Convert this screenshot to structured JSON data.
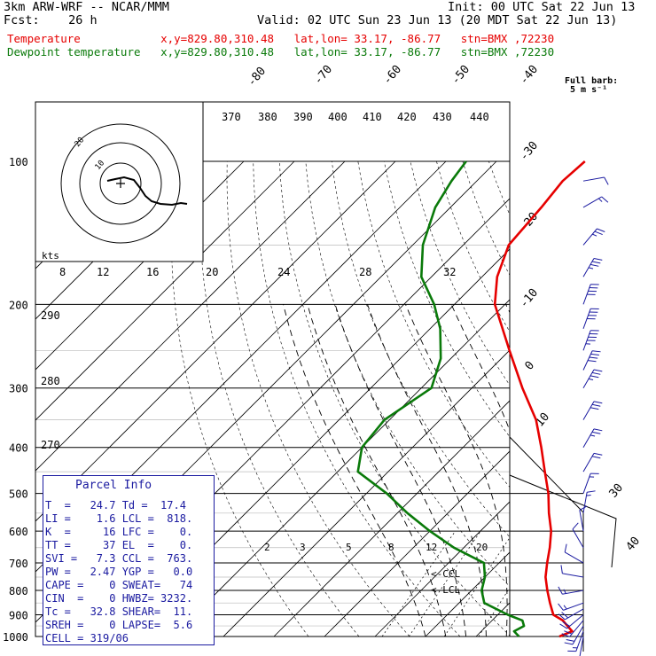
{
  "header": {
    "line1_left": "3km ARW-WRF -- NCAR/MMM",
    "line1_right": "Init: 00 UTC Sat 22 Jun 13",
    "line2_left": "Fcst:    26 h",
    "line2_right": "Valid: 02 UTC Sun 23 Jun 13 (20 MDT Sat 22 Jun 13)",
    "temp_line": "Temperature            x,y=829.80,310.48   lat,lon= 33.17, -86.77   stn=BMX ,72230",
    "dew_line": "Dewpoint temperature   x,y=829.80,310.48   lat,lon= 33.17, -86.77   stn=BMX ,72230"
  },
  "colors": {
    "temperature": "#e60000",
    "dewpoint": "#0a7a0a",
    "info_panel": "#1a1aa0",
    "winds": "#1a1aa0"
  },
  "wind_legend": {
    "line1": "Full barb:",
    "line2": "5 m s⁻¹"
  },
  "hodograph": {
    "units": "kts",
    "ring_labels": [
      "10",
      "20"
    ]
  },
  "parcel_info": {
    "title": "Parcel Info",
    "rows": [
      "T  =   24.7 Td =  17.4",
      "LI =    1.6 LCL =  818.",
      "K  =     16 LFC =    0.",
      "TT =     37 EL  =    0.",
      "SVI =   7.3 CCL =  763.",
      "PW =   2.47 YGP =   0.0",
      "CAPE =    0 SWEAT=   74",
      "CIN  =    0 HWBZ= 3232.",
      "Tc =   32.8 SHEAR=  11.",
      "SREH =    0 LAPSE=  5.6",
      "CELL = 319/06"
    ]
  },
  "chart_data": {
    "type": "line",
    "title": "",
    "xlabel": "",
    "ylabel": "",
    "pressure_axis_labels": [
      "100",
      "200",
      "300",
      "400",
      "500",
      "600",
      "700",
      "800",
      "900",
      "1000"
    ],
    "isotherm_labels_top": [
      "-80",
      "-70",
      "-60",
      "-50",
      "-40"
    ],
    "isotherm_labels_right": [
      "-30",
      "-20",
      "-10",
      "0",
      "10",
      "30",
      "40"
    ],
    "theta_labels": [
      "370",
      "380",
      "390",
      "400",
      "410",
      "420",
      "430",
      "440"
    ],
    "dry_adiabat_labels": [
      "290",
      "280",
      "270"
    ],
    "mixing_ratio_labels_top": [
      "8",
      "12",
      "16",
      "20",
      "24",
      "28",
      "32"
    ],
    "mixing_ratio_labels_low": [
      "2",
      "3",
      "5",
      "8",
      "12",
      "20"
    ],
    "annotations": [
      "<-CCL",
      "<-LCL"
    ],
    "series": [
      {
        "name": "Temperature",
        "points": [
          [
            1000,
            26.5
          ],
          [
            975,
            28.0
          ],
          [
            950,
            26.0
          ],
          [
            925,
            24.0
          ],
          [
            900,
            21.0
          ],
          [
            850,
            18.0
          ],
          [
            800,
            15.0
          ],
          [
            750,
            12.0
          ],
          [
            700,
            9.5
          ],
          [
            650,
            7.0
          ],
          [
            600,
            4.0
          ],
          [
            550,
            0.0
          ],
          [
            500,
            -4.0
          ],
          [
            450,
            -9.0
          ],
          [
            400,
            -14.5
          ],
          [
            350,
            -21.0
          ],
          [
            300,
            -30.0
          ],
          [
            250,
            -40.0
          ],
          [
            200,
            -52.0
          ],
          [
            175,
            -57.0
          ],
          [
            150,
            -61.0
          ],
          [
            125,
            -62.0
          ],
          [
            110,
            -63.0
          ],
          [
            100,
            -62.5
          ]
        ]
      },
      {
        "name": "Dewpoint temperature",
        "points": [
          [
            1000,
            18.5
          ],
          [
            975,
            16.5
          ],
          [
            950,
            17.4
          ],
          [
            925,
            16.0
          ],
          [
            900,
            12.0
          ],
          [
            850,
            5.0
          ],
          [
            800,
            2.0
          ],
          [
            750,
            0.0
          ],
          [
            700,
            -3.0
          ],
          [
            650,
            -12.0
          ],
          [
            600,
            -20.0
          ],
          [
            550,
            -28.0
          ],
          [
            500,
            -36.0
          ],
          [
            450,
            -46.0
          ],
          [
            400,
            -50.0
          ],
          [
            350,
            -51.0
          ],
          [
            300,
            -48.0
          ],
          [
            260,
            -52.0
          ],
          [
            225,
            -58.0
          ],
          [
            200,
            -64.0
          ],
          [
            175,
            -72.0
          ],
          [
            150,
            -78.0
          ],
          [
            125,
            -83.0
          ],
          [
            110,
            -85.0
          ],
          [
            100,
            -86.0
          ]
        ]
      }
    ],
    "winds": [
      {
        "p": 1000,
        "dir": 190,
        "spd": 4
      },
      {
        "p": 975,
        "dir": 200,
        "spd": 8
      },
      {
        "p": 950,
        "dir": 210,
        "spd": 10
      },
      {
        "p": 925,
        "dir": 220,
        "spd": 11
      },
      {
        "p": 900,
        "dir": 230,
        "spd": 11
      },
      {
        "p": 875,
        "dir": 240,
        "spd": 10
      },
      {
        "p": 850,
        "dir": 250,
        "spd": 9
      },
      {
        "p": 800,
        "dir": 260,
        "spd": 7
      },
      {
        "p": 750,
        "dir": 280,
        "spd": 6
      },
      {
        "p": 700,
        "dir": 300,
        "spd": 5
      },
      {
        "p": 650,
        "dir": 330,
        "spd": 5
      },
      {
        "p": 600,
        "dir": 350,
        "spd": 6
      },
      {
        "p": 550,
        "dir": 10,
        "spd": 7
      },
      {
        "p": 500,
        "dir": 20,
        "spd": 9
      },
      {
        "p": 450,
        "dir": 30,
        "spd": 11
      },
      {
        "p": 400,
        "dir": 30,
        "spd": 14
      },
      {
        "p": 350,
        "dir": 30,
        "spd": 16
      },
      {
        "p": 300,
        "dir": 30,
        "spd": 19
      },
      {
        "p": 275,
        "dir": 25,
        "spd": 20
      },
      {
        "p": 250,
        "dir": 20,
        "spd": 22
      },
      {
        "p": 225,
        "dir": 20,
        "spd": 21
      },
      {
        "p": 200,
        "dir": 20,
        "spd": 20
      },
      {
        "p": 175,
        "dir": 30,
        "spd": 17
      },
      {
        "p": 150,
        "dir": 40,
        "spd": 12
      },
      {
        "p": 125,
        "dir": 60,
        "spd": 8
      },
      {
        "p": 110,
        "dir": 80,
        "spd": 5
      }
    ],
    "hodograph_trace": [
      [
        -1.5,
        0.3
      ],
      [
        -0.6,
        0.5
      ],
      [
        0.4,
        0.7
      ],
      [
        1.5,
        0.4
      ],
      [
        2.2,
        -0.5
      ],
      [
        2.8,
        -1.4
      ],
      [
        3.5,
        -2.0
      ],
      [
        4.5,
        -2.3
      ],
      [
        5.8,
        -2.4
      ],
      [
        6.8,
        -2.2
      ],
      [
        7.5,
        -2.3
      ]
    ],
    "grid": true
  }
}
